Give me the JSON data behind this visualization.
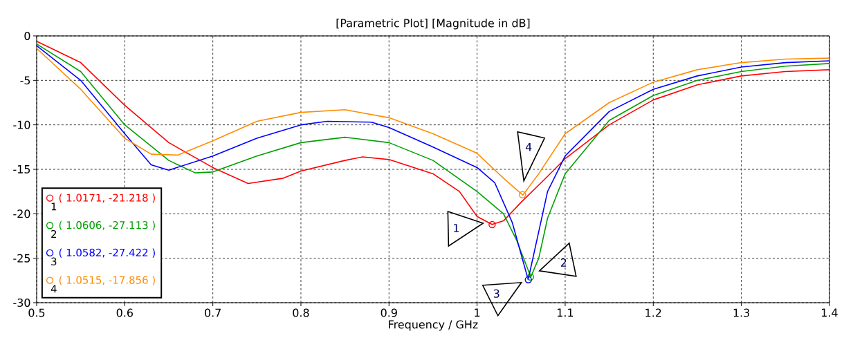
{
  "chart_data": {
    "type": "line",
    "title": "[Parametric Plot] [Magnitude in dB]",
    "xlabel": "Frequency / GHz",
    "series": [
      {
        "color": "#ff0000",
        "x": [
          0.5,
          0.55,
          0.6,
          0.65,
          0.7,
          0.74,
          0.78,
          0.8,
          0.85,
          0.87,
          0.9,
          0.95,
          0.98,
          1.0,
          1.017,
          1.03,
          1.05,
          1.08,
          1.1,
          1.15,
          1.2,
          1.25,
          1.3,
          1.35,
          1.4
        ],
        "values": [
          -0.6,
          -3,
          -7.8,
          -12,
          -14.8,
          -16.6,
          -16,
          -15.2,
          -14,
          -13.6,
          -13.9,
          -15.5,
          -17.5,
          -20.3,
          -21.2,
          -20.8,
          -18.7,
          -15.8,
          -13.8,
          -10,
          -7.2,
          -5.5,
          -4.5,
          -4,
          -3.8
        ]
      },
      {
        "color": "#00a000",
        "x": [
          0.5,
          0.55,
          0.6,
          0.65,
          0.68,
          0.7,
          0.75,
          0.8,
          0.85,
          0.9,
          0.95,
          1.0,
          1.03,
          1.045,
          1.061,
          1.07,
          1.08,
          1.1,
          1.15,
          1.2,
          1.25,
          1.3,
          1.35,
          1.4
        ],
        "values": [
          -0.9,
          -4,
          -10,
          -14,
          -15.4,
          -15.3,
          -13.5,
          -12,
          -11.4,
          -12,
          -14,
          -17.5,
          -20,
          -23,
          -27.1,
          -25,
          -20.5,
          -15.5,
          -9.5,
          -6.7,
          -5,
          -4,
          -3.4,
          -3.1
        ]
      },
      {
        "color": "#0000ff",
        "x": [
          0.5,
          0.55,
          0.6,
          0.63,
          0.65,
          0.7,
          0.75,
          0.8,
          0.83,
          0.88,
          0.9,
          0.95,
          1.0,
          1.02,
          1.04,
          1.058,
          1.07,
          1.08,
          1.1,
          1.15,
          1.2,
          1.25,
          1.3,
          1.35,
          1.4
        ],
        "values": [
          -1.1,
          -5,
          -11,
          -14.5,
          -15.1,
          -13.5,
          -11.5,
          -10,
          -9.6,
          -9.7,
          -10.3,
          -12.5,
          -14.8,
          -16.5,
          -21,
          -27.4,
          -22,
          -17.5,
          -13.5,
          -8.5,
          -6,
          -4.5,
          -3.5,
          -3,
          -2.8
        ]
      },
      {
        "color": "#ff8c00",
        "x": [
          0.5,
          0.55,
          0.6,
          0.63,
          0.66,
          0.7,
          0.75,
          0.8,
          0.85,
          0.9,
          0.95,
          1.0,
          1.03,
          1.052,
          1.07,
          1.1,
          1.15,
          1.2,
          1.25,
          1.3,
          1.35,
          1.4
        ],
        "values": [
          -1.4,
          -6,
          -11.5,
          -13.3,
          -13.4,
          -11.8,
          -9.6,
          -8.6,
          -8.3,
          -9.2,
          -11,
          -13.2,
          -16,
          -17.9,
          -15.5,
          -11,
          -7.5,
          -5.2,
          -3.8,
          -3,
          -2.6,
          -2.5
        ]
      },
      {
        "type": "scatter",
        "name": "( 1.0171, -21.218 )",
        "color": "#ff0000",
        "x": [
          1.0171
        ],
        "values": [
          -21.218
        ]
      },
      {
        "type": "scatter",
        "name": "( 1.0606, -27.113 )",
        "color": "#00a000",
        "x": [
          1.0606
        ],
        "values": [
          -27.113
        ]
      },
      {
        "type": "scatter",
        "name": "( 1.0582, -27.422 )",
        "color": "#0000ff",
        "x": [
          1.0582
        ],
        "values": [
          -27.422
        ]
      },
      {
        "type": "scatter",
        "name": "( 1.0515, -17.856 )",
        "color": "#ff8c00",
        "x": [
          1.0515
        ],
        "values": [
          -17.856
        ]
      }
    ],
    "annotations": [
      "1",
      "2",
      "3",
      "4"
    ],
    "xlim": [
      0.5,
      1.4
    ],
    "ylim": [
      -30,
      0
    ],
    "xticks": [
      0.5,
      0.6,
      0.7,
      0.8,
      0.9,
      1,
      1.1,
      1.2,
      1.3,
      1.4
    ],
    "yticks": [
      -30,
      -25,
      -20,
      -15,
      -10,
      -5,
      0
    ],
    "grid": true,
    "legend": "bottom left",
    "line_style": "solid"
  }
}
